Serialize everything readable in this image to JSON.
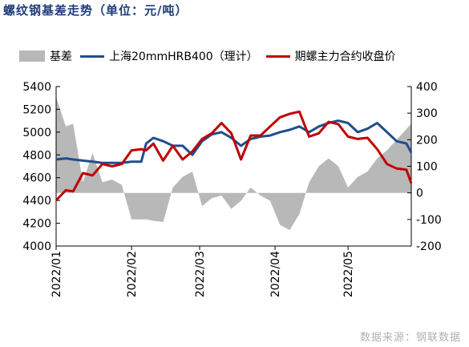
{
  "title": "螺纹钢基差走势（单位：元/吨）",
  "source": "数据来源：钢联数据",
  "colors": {
    "basis": "#b8b8b8",
    "spot": "#1f4e8c",
    "futures": "#c00000"
  },
  "chart_data": {
    "type": "line",
    "title": "螺纹钢基差走势（单位：元/吨）",
    "x_ticks": [
      "2022/01",
      "2022/02",
      "2022/03",
      "2022/04",
      "2022/05"
    ],
    "xlim": [
      "2022-01-01",
      "2022-05-27"
    ],
    "ylim_left": [
      4000,
      5400
    ],
    "yticks_left": [
      "5400",
      "5200",
      "5000",
      "4800",
      "4600",
      "4400",
      "4200",
      "4000"
    ],
    "ylim_right": [
      -200,
      400
    ],
    "yticks_right": [
      "400",
      "300",
      "200",
      "100",
      "0",
      "-100",
      "-200"
    ],
    "legend_position": "top",
    "series": [
      {
        "name": "基差",
        "kind": "area",
        "axis": "right",
        "x": [
          "2022-01-01",
          "2022-01-05",
          "2022-01-08",
          "2022-01-12",
          "2022-01-16",
          "2022-01-20",
          "2022-01-24",
          "2022-01-28",
          "2022-02-01",
          "2022-02-05",
          "2022-02-07",
          "2022-02-10",
          "2022-02-14",
          "2022-02-18",
          "2022-02-22",
          "2022-02-26",
          "2022-03-02",
          "2022-03-06",
          "2022-03-10",
          "2022-03-14",
          "2022-03-18",
          "2022-03-22",
          "2022-03-26",
          "2022-03-30",
          "2022-04-03",
          "2022-04-07",
          "2022-04-11",
          "2022-04-15",
          "2022-04-19",
          "2022-04-23",
          "2022-04-27",
          "2022-05-01",
          "2022-05-05",
          "2022-05-09",
          "2022-05-13",
          "2022-05-17",
          "2022-05-21",
          "2022-05-25",
          "2022-05-27"
        ],
        "values": [
          360,
          250,
          260,
          40,
          150,
          40,
          50,
          30,
          -100,
          -100,
          -100,
          -105,
          -110,
          20,
          60,
          80,
          -50,
          -20,
          -10,
          -60,
          -30,
          20,
          -10,
          -30,
          -120,
          -140,
          -80,
          40,
          100,
          130,
          100,
          20,
          60,
          80,
          130,
          160,
          200,
          240,
          260
        ]
      },
      {
        "name": "上海20mmHRB400（理计）",
        "kind": "line",
        "axis": "left",
        "x": [
          "2022-01-01",
          "2022-01-05",
          "2022-01-08",
          "2022-01-12",
          "2022-01-16",
          "2022-01-20",
          "2022-01-24",
          "2022-01-28",
          "2022-02-01",
          "2022-02-05",
          "2022-02-07",
          "2022-02-10",
          "2022-02-14",
          "2022-02-18",
          "2022-02-22",
          "2022-02-26",
          "2022-03-02",
          "2022-03-06",
          "2022-03-10",
          "2022-03-14",
          "2022-03-18",
          "2022-03-22",
          "2022-03-26",
          "2022-03-30",
          "2022-04-03",
          "2022-04-07",
          "2022-04-11",
          "2022-04-15",
          "2022-04-19",
          "2022-04-23",
          "2022-04-27",
          "2022-05-01",
          "2022-05-05",
          "2022-05-09",
          "2022-05-13",
          "2022-05-17",
          "2022-05-21",
          "2022-05-25",
          "2022-05-27"
        ],
        "values": [
          4760,
          4770,
          4760,
          4750,
          4740,
          4730,
          4730,
          4730,
          4740,
          4740,
          4900,
          4950,
          4920,
          4880,
          4880,
          4800,
          4920,
          4980,
          5000,
          4950,
          4880,
          4940,
          4960,
          4970,
          5000,
          5020,
          5050,
          5000,
          5050,
          5080,
          5100,
          5080,
          5000,
          5030,
          5080,
          5000,
          4920,
          4900,
          4820
        ]
      },
      {
        "name": "期螺主力合约收盘价",
        "kind": "line",
        "axis": "left",
        "x": [
          "2022-01-01",
          "2022-01-05",
          "2022-01-08",
          "2022-01-12",
          "2022-01-16",
          "2022-01-20",
          "2022-01-24",
          "2022-01-28",
          "2022-02-01",
          "2022-02-05",
          "2022-02-07",
          "2022-02-10",
          "2022-02-14",
          "2022-02-18",
          "2022-02-22",
          "2022-02-26",
          "2022-03-02",
          "2022-03-06",
          "2022-03-10",
          "2022-03-14",
          "2022-03-18",
          "2022-03-22",
          "2022-03-26",
          "2022-03-30",
          "2022-04-03",
          "2022-04-07",
          "2022-04-11",
          "2022-04-15",
          "2022-04-19",
          "2022-04-23",
          "2022-04-27",
          "2022-05-01",
          "2022-05-05",
          "2022-05-09",
          "2022-05-13",
          "2022-05-17",
          "2022-05-21",
          "2022-05-25",
          "2022-05-27"
        ],
        "values": [
          4400,
          4490,
          4480,
          4640,
          4620,
          4720,
          4700,
          4720,
          4840,
          4850,
          4840,
          4900,
          4750,
          4880,
          4760,
          4830,
          4940,
          4990,
          5080,
          4990,
          4760,
          4970,
          4970,
          5050,
          5130,
          5160,
          5180,
          4960,
          4990,
          5090,
          5070,
          4960,
          4940,
          4950,
          4850,
          4720,
          4680,
          4670,
          4550
        ]
      }
    ]
  }
}
